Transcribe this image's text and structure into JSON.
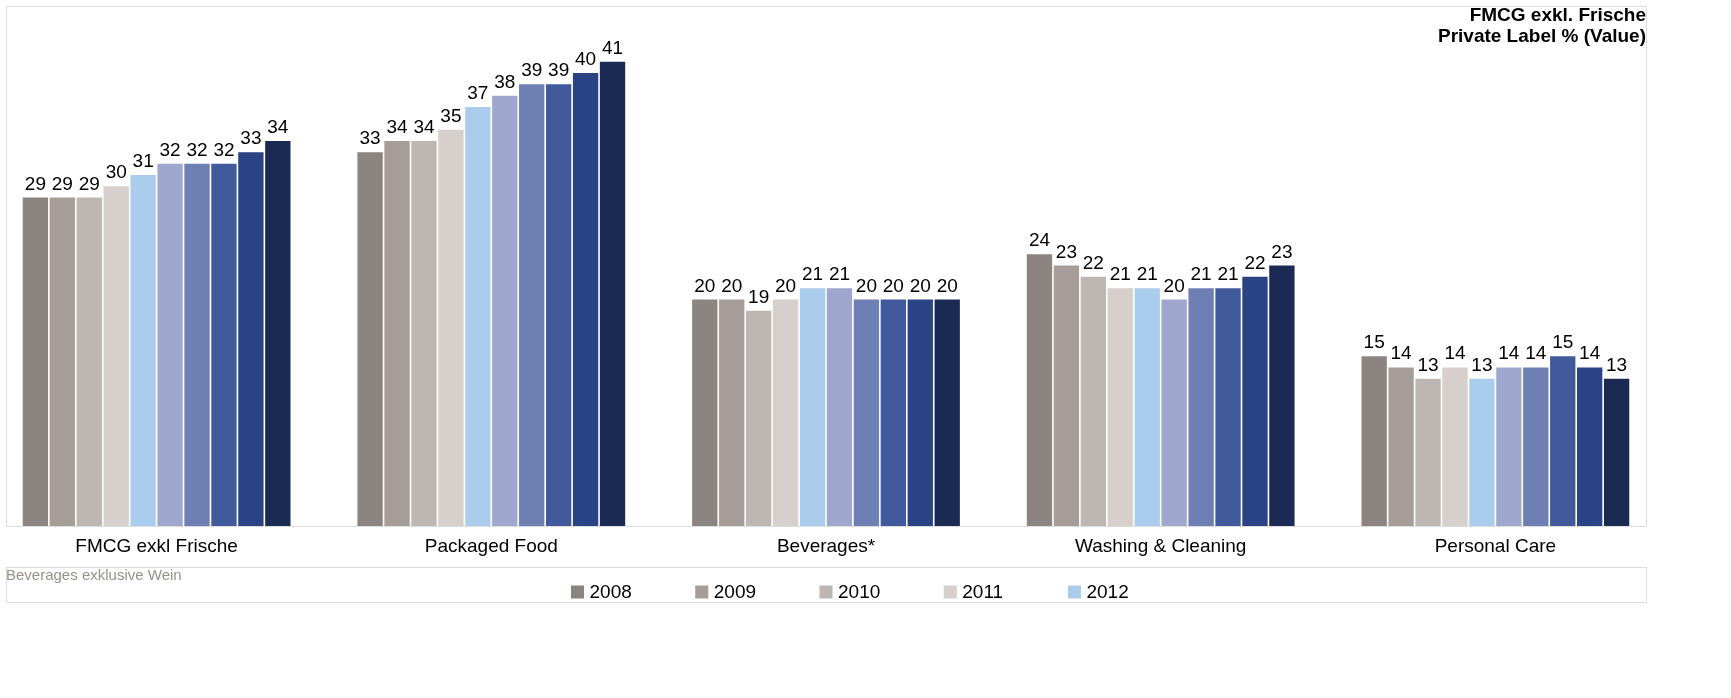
{
  "chart_data": {
    "type": "bar",
    "title": [
      "FMCG exkl. Frische",
      "Private Label % (Value)"
    ],
    "categories": [
      "FMCG exkl Frische",
      "Packaged Food",
      "Beverages*",
      "Washing & Cleaning",
      "Personal Care"
    ],
    "series": [
      {
        "name": "2008",
        "color": "#8c8480",
        "values": [
          29,
          33,
          20,
          24,
          15
        ]
      },
      {
        "name": "2009",
        "color": "#a69d98",
        "values": [
          29,
          34,
          20,
          23,
          14
        ]
      },
      {
        "name": "2010",
        "color": "#bdb6b2",
        "values": [
          29,
          34,
          19,
          22,
          13
        ]
      },
      {
        "name": "2011",
        "color": "#d6cfcc",
        "values": [
          30,
          35,
          20,
          21,
          14
        ]
      },
      {
        "name": "2012",
        "color": "#aacdee",
        "values": [
          31,
          37,
          21,
          21,
          13
        ]
      },
      {
        "color": "#9fa7cf",
        "values": [
          32,
          38,
          21,
          20,
          14
        ]
      },
      {
        "color": "#6e7fb4",
        "values": [
          32,
          39,
          20,
          21,
          14
        ]
      },
      {
        "color": "#415a9c",
        "values": [
          32,
          39,
          20,
          21,
          15
        ]
      },
      {
        "color": "#2a4384",
        "values": [
          33,
          40,
          20,
          22,
          14
        ]
      },
      {
        "color": "#1b2a52",
        "values": [
          34,
          41,
          20,
          23,
          13
        ]
      }
    ],
    "data_labels": true,
    "legend": "bottom",
    "annotations": [
      "Beverages exklusive Wein"
    ]
  }
}
